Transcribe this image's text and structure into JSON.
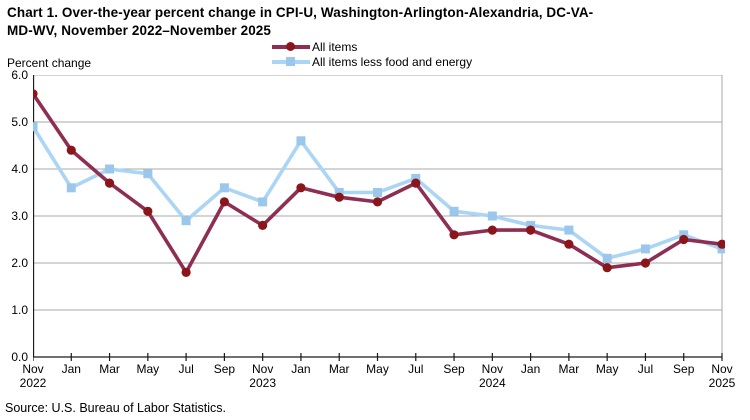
{
  "title": "Chart 1. Over-the-year percent change in CPI-U, Washington-Arlington-Alexandria,  DC-VA-\nMD-WV, November 2022–November 2025",
  "axis_unit_label": "Percent change",
  "source_line": "Source: U.S. Bureau of Labor Statistics.",
  "colors": {
    "all_items_line": "#8e2e52",
    "all_items_marker": "#8a161c",
    "core_line": "#abd5f5",
    "core_marker": "#9cc7ec",
    "gridline": "#a8a8a8",
    "axis": "#1a1a1a"
  },
  "chart_data": {
    "type": "line",
    "title": "Chart 1. Over-the-year percent change in CPI-U, Washington-Arlington-Alexandria, DC-VA-MD-WV, November 2022–November 2025",
    "ylabel": "Percent change",
    "ylim": [
      0,
      6
    ],
    "grid": true,
    "legend_position": "top-center",
    "y_tick_labels": [
      "0.0",
      "1.0",
      "2.0",
      "3.0",
      "4.0",
      "5.0",
      "6.0"
    ],
    "x_tick_labels": [
      {
        "month": "Nov",
        "year": "2022"
      },
      {
        "month": "Jan"
      },
      {
        "month": "Mar"
      },
      {
        "month": "May"
      },
      {
        "month": "Jul"
      },
      {
        "month": "Sep"
      },
      {
        "month": "Nov",
        "year": "2023"
      },
      {
        "month": "Jan"
      },
      {
        "month": "Mar"
      },
      {
        "month": "May"
      },
      {
        "month": "Jul"
      },
      {
        "month": "Sep"
      },
      {
        "month": "Nov",
        "year": "2024"
      },
      {
        "month": "Jan"
      },
      {
        "month": "Mar"
      },
      {
        "month": "May"
      },
      {
        "month": "Jul"
      },
      {
        "month": "Sep"
      },
      {
        "month": "Nov",
        "year": "2025"
      }
    ],
    "series": [
      {
        "name": "All items",
        "marker": "circle",
        "values": [
          5.6,
          4.4,
          3.7,
          3.1,
          1.8,
          3.3,
          2.8,
          3.6,
          3.4,
          3.3,
          3.7,
          2.6,
          2.7,
          2.7,
          2.4,
          1.9,
          2.0,
          2.5,
          2.4
        ]
      },
      {
        "name": "All items less food and energy",
        "marker": "square",
        "values": [
          4.9,
          3.6,
          4.0,
          3.9,
          2.9,
          3.6,
          3.3,
          4.6,
          3.5,
          3.5,
          3.8,
          3.1,
          3.0,
          2.8,
          2.7,
          2.1,
          2.3,
          2.6,
          2.3
        ]
      }
    ]
  }
}
